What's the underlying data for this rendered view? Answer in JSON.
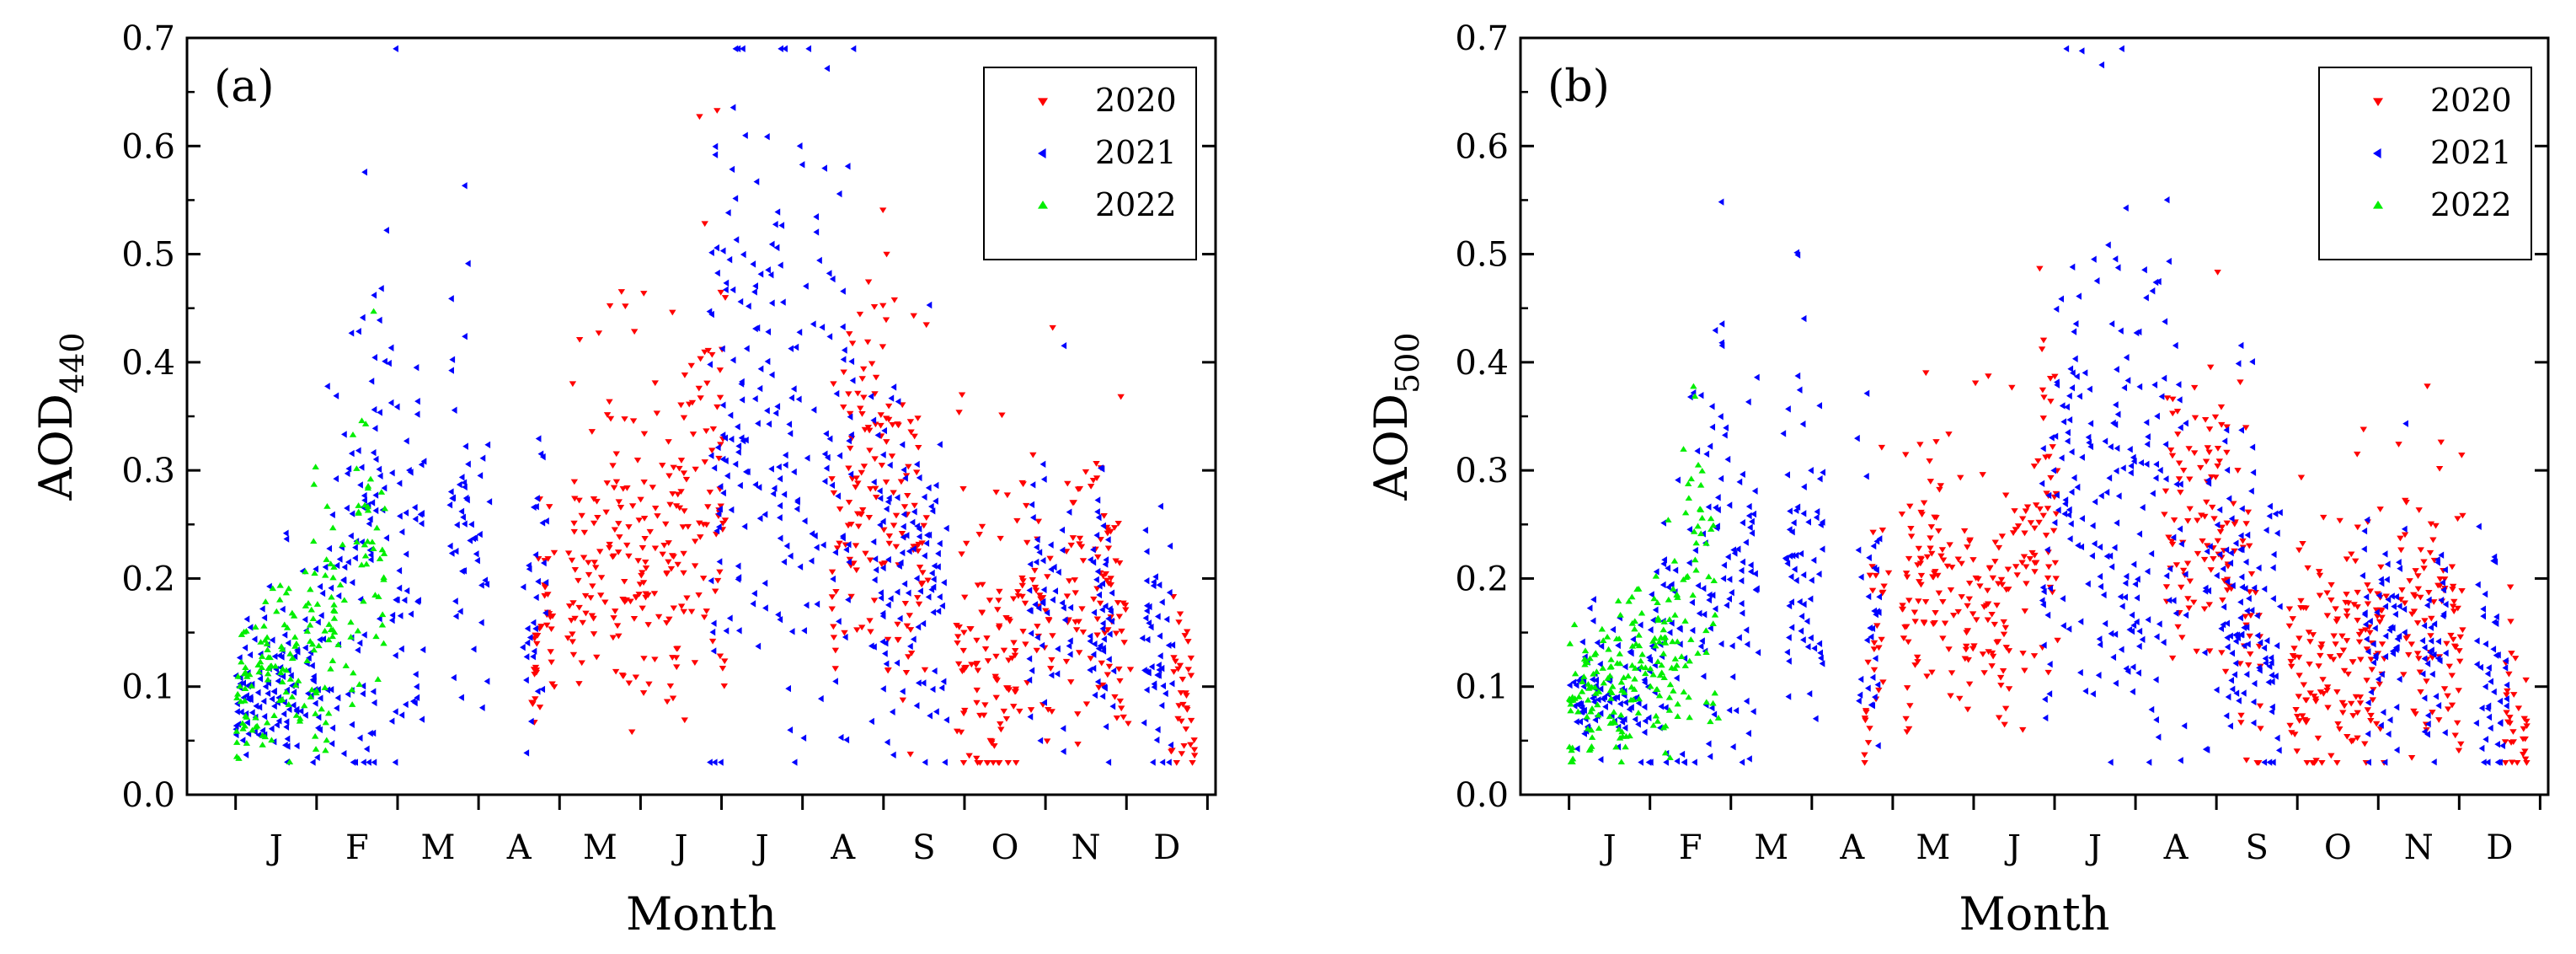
{
  "chart_data": [
    {
      "type": "scatter",
      "panel": "(a)",
      "ylabel_main": "AOD",
      "ylabel_sub": "440",
      "xlabel": "Month",
      "ylim": [
        0.0,
        0.7
      ],
      "yticks": [
        "0.0",
        "0.1",
        "0.2",
        "0.3",
        "0.4",
        "0.5",
        "0.6",
        "0.7"
      ],
      "months": [
        "J",
        "F",
        "M",
        "A",
        "M",
        "J",
        "J",
        "A",
        "S",
        "O",
        "N",
        "D"
      ],
      "legend": [
        {
          "name": "2020",
          "color": "#ff0000",
          "marker": "triangle-down"
        },
        {
          "name": "2021",
          "color": "#0000ff",
          "marker": "triangle-left"
        },
        {
          "name": "2022",
          "color": "#00ee00",
          "marker": "triangle-up"
        }
      ],
      "series": [
        {
          "name": "2020",
          "profile": [
            [
              0,
              0.0
            ],
            [
              3.6,
              0.0
            ],
            [
              3.75,
              0.18
            ],
            [
              4.2,
              0.2
            ],
            [
              4.5,
              0.25
            ],
            [
              5.0,
              0.22
            ],
            [
              5.4,
              0.2
            ],
            [
              5.7,
              0.3
            ],
            [
              5.95,
              0.3
            ],
            [
              6.0,
              0.25
            ],
            [
              6.3,
              0.15
            ],
            [
              6.6,
              0.1
            ],
            [
              7.0,
              0.15
            ],
            [
              7.4,
              0.25
            ],
            [
              7.8,
              0.3
            ],
            [
              8.1,
              0.3
            ],
            [
              8.5,
              0.15
            ],
            [
              8.9,
              0.12
            ],
            [
              9.2,
              0.13
            ],
            [
              9.4,
              0.12
            ],
            [
              9.7,
              0.15
            ],
            [
              10.0,
              0.16
            ],
            [
              10.3,
              0.2
            ],
            [
              10.7,
              0.2
            ],
            [
              11.0,
              0.15
            ],
            [
              11.4,
              0.12
            ],
            [
              11.8,
              0.08
            ],
            [
              12,
              0.0
            ]
          ],
          "spread": [
            [
              0,
              0.0
            ],
            [
              3.6,
              0.0
            ],
            [
              3.75,
              0.08
            ],
            [
              4.5,
              0.1
            ],
            [
              5.5,
              0.12
            ],
            [
              5.9,
              0.18
            ],
            [
              6.1,
              0.12
            ],
            [
              7.5,
              0.12
            ],
            [
              8.3,
              0.16
            ],
            [
              9.0,
              0.12
            ],
            [
              10.0,
              0.12
            ],
            [
              11.0,
              0.1
            ],
            [
              11.8,
              0.06
            ],
            [
              12,
              0.0
            ]
          ],
          "active": [
            [
              3.65,
              3.95
            ],
            [
              4.1,
              6.05
            ],
            [
              7.35,
              8.55
            ],
            [
              8.9,
              10.1
            ],
            [
              10.25,
              11.05
            ],
            [
              11.55,
              11.85
            ]
          ]
        },
        {
          "name": "2021",
          "profile": [
            [
              0,
              0.1
            ],
            [
              0.5,
              0.1
            ],
            [
              1.0,
              0.12
            ],
            [
              1.6,
              0.2
            ],
            [
              1.85,
              0.35
            ],
            [
              2.0,
              0.2
            ],
            [
              2.5,
              0.22
            ],
            [
              2.9,
              0.28
            ],
            [
              3.0,
              0.22
            ],
            [
              3.3,
              0.2
            ],
            [
              3.6,
              0.18
            ],
            [
              4.5,
              0.2
            ],
            [
              5.9,
              0.22
            ],
            [
              6.1,
              0.38
            ],
            [
              6.5,
              0.33
            ],
            [
              7.0,
              0.3
            ],
            [
              7.3,
              0.35
            ],
            [
              7.6,
              0.28
            ],
            [
              8.0,
              0.22
            ],
            [
              8.5,
              0.2
            ],
            [
              9.0,
              0.15
            ],
            [
              9.5,
              0.16
            ],
            [
              10.0,
              0.18
            ],
            [
              10.3,
              0.18
            ],
            [
              10.6,
              0.16
            ],
            [
              11.5,
              0.12
            ],
            [
              12,
              0.1
            ]
          ],
          "spread": [
            [
              0,
              0.04
            ],
            [
              1.0,
              0.08
            ],
            [
              1.85,
              0.25
            ],
            [
              2.5,
              0.12
            ],
            [
              3.0,
              0.15
            ],
            [
              4.0,
              0.1
            ],
            [
              6.0,
              0.2
            ],
            [
              7.2,
              0.25
            ],
            [
              8.0,
              0.15
            ],
            [
              9.0,
              0.12
            ],
            [
              12,
              0.08
            ]
          ],
          "active": [
            [
              0.0,
              1.95
            ],
            [
              1.95,
              2.35
            ],
            [
              2.65,
              3.15
            ],
            [
              3.55,
              3.85
            ],
            [
              5.85,
              7.65
            ],
            [
              7.85,
              8.8
            ],
            [
              9.8,
              10.35
            ],
            [
              10.55,
              10.85
            ],
            [
              11.2,
              11.6
            ]
          ]
        },
        {
          "name": "2022",
          "profile": [
            [
              0,
              0.08
            ],
            [
              0.5,
              0.12
            ],
            [
              1.0,
              0.13
            ],
            [
              1.5,
              0.18
            ],
            [
              1.6,
              0.3
            ],
            [
              1.75,
              0.2
            ],
            [
              2.0,
              0.18
            ]
          ],
          "spread": [
            [
              0,
              0.05
            ],
            [
              1.0,
              0.08
            ],
            [
              1.6,
              0.12
            ],
            [
              2.0,
              0.08
            ]
          ],
          "active": [
            [
              0.0,
              1.85
            ]
          ]
        }
      ]
    },
    {
      "type": "scatter",
      "panel": "(b)",
      "ylabel_main": "AOD",
      "ylabel_sub": "500",
      "xlabel": "Month",
      "ylim": [
        0.0,
        0.7
      ],
      "yticks": [
        "0.0",
        "0.1",
        "0.2",
        "0.3",
        "0.4",
        "0.5",
        "0.6",
        "0.7"
      ],
      "months": [
        "J",
        "F",
        "M",
        "A",
        "M",
        "J",
        "J",
        "A",
        "S",
        "O",
        "N",
        "D"
      ],
      "legend": [
        {
          "name": "2020",
          "color": "#ff0000",
          "marker": "triangle-down"
        },
        {
          "name": "2021",
          "color": "#0000ff",
          "marker": "triangle-left"
        },
        {
          "name": "2022",
          "color": "#00ee00",
          "marker": "triangle-up"
        }
      ],
      "series": [
        {
          "name": "2020",
          "profile": [
            [
              0,
              0.0
            ],
            [
              3.6,
              0.0
            ],
            [
              3.75,
              0.15
            ],
            [
              4.2,
              0.17
            ],
            [
              4.5,
              0.22
            ],
            [
              5.0,
              0.19
            ],
            [
              5.4,
              0.17
            ],
            [
              5.7,
              0.26
            ],
            [
              5.95,
              0.26
            ],
            [
              6.0,
              0.22
            ],
            [
              6.3,
              0.13
            ],
            [
              6.6,
              0.09
            ],
            [
              7.0,
              0.13
            ],
            [
              7.4,
              0.22
            ],
            [
              7.8,
              0.26
            ],
            [
              8.1,
              0.26
            ],
            [
              8.5,
              0.13
            ],
            [
              8.9,
              0.1
            ],
            [
              9.2,
              0.11
            ],
            [
              9.4,
              0.1
            ],
            [
              9.7,
              0.13
            ],
            [
              10.0,
              0.14
            ],
            [
              10.3,
              0.17
            ],
            [
              10.7,
              0.17
            ],
            [
              11.0,
              0.13
            ],
            [
              11.4,
              0.1
            ],
            [
              11.8,
              0.07
            ],
            [
              12,
              0.0
            ]
          ],
          "spread": [
            [
              0,
              0.0
            ],
            [
              3.6,
              0.0
            ],
            [
              3.75,
              0.07
            ],
            [
              4.5,
              0.09
            ],
            [
              5.5,
              0.1
            ],
            [
              5.9,
              0.16
            ],
            [
              6.1,
              0.1
            ],
            [
              7.5,
              0.1
            ],
            [
              8.3,
              0.14
            ],
            [
              9.0,
              0.1
            ],
            [
              10.0,
              0.1
            ],
            [
              11.0,
              0.09
            ],
            [
              11.8,
              0.05
            ],
            [
              12,
              0.0
            ]
          ],
          "active": [
            [
              3.65,
              3.95
            ],
            [
              4.1,
              6.05
            ],
            [
              7.35,
              8.55
            ],
            [
              8.9,
              10.1
            ],
            [
              10.25,
              11.05
            ],
            [
              11.55,
              11.85
            ]
          ]
        },
        {
          "name": "2021",
          "profile": [
            [
              0,
              0.09
            ],
            [
              0.5,
              0.09
            ],
            [
              1.0,
              0.1
            ],
            [
              1.6,
              0.17
            ],
            [
              1.85,
              0.3
            ],
            [
              2.0,
              0.17
            ],
            [
              2.5,
              0.19
            ],
            [
              2.9,
              0.24
            ],
            [
              3.0,
              0.19
            ],
            [
              3.3,
              0.17
            ],
            [
              3.6,
              0.15
            ],
            [
              4.5,
              0.17
            ],
            [
              5.9,
              0.19
            ],
            [
              6.1,
              0.33
            ],
            [
              6.5,
              0.28
            ],
            [
              7.0,
              0.26
            ],
            [
              7.3,
              0.3
            ],
            [
              7.6,
              0.24
            ],
            [
              8.0,
              0.19
            ],
            [
              8.5,
              0.17
            ],
            [
              9.0,
              0.13
            ],
            [
              9.5,
              0.14
            ],
            [
              10.0,
              0.15
            ],
            [
              10.3,
              0.15
            ],
            [
              10.6,
              0.14
            ],
            [
              11.5,
              0.1
            ],
            [
              12,
              0.09
            ]
          ],
          "spread": [
            [
              0,
              0.035
            ],
            [
              1.0,
              0.07
            ],
            [
              1.85,
              0.22
            ],
            [
              2.5,
              0.1
            ],
            [
              3.0,
              0.13
            ],
            [
              4.0,
              0.09
            ],
            [
              6.0,
              0.17
            ],
            [
              7.2,
              0.22
            ],
            [
              8.0,
              0.13
            ],
            [
              9.0,
              0.1
            ],
            [
              12,
              0.07
            ]
          ],
          "active": [
            [
              0.0,
              1.95
            ],
            [
              1.95,
              2.35
            ],
            [
              2.65,
              3.15
            ],
            [
              3.55,
              3.85
            ],
            [
              5.85,
              7.65
            ],
            [
              7.85,
              8.8
            ],
            [
              9.8,
              10.35
            ],
            [
              10.55,
              10.85
            ],
            [
              11.2,
              11.6
            ]
          ]
        },
        {
          "name": "2022",
          "profile": [
            [
              0,
              0.07
            ],
            [
              0.5,
              0.1
            ],
            [
              1.0,
              0.11
            ],
            [
              1.5,
              0.15
            ],
            [
              1.6,
              0.26
            ],
            [
              1.75,
              0.17
            ],
            [
              2.0,
              0.15
            ]
          ],
          "spread": [
            [
              0,
              0.04
            ],
            [
              1.0,
              0.07
            ],
            [
              1.6,
              0.1
            ],
            [
              2.0,
              0.07
            ]
          ],
          "active": [
            [
              0.0,
              1.85
            ]
          ]
        }
      ]
    }
  ]
}
